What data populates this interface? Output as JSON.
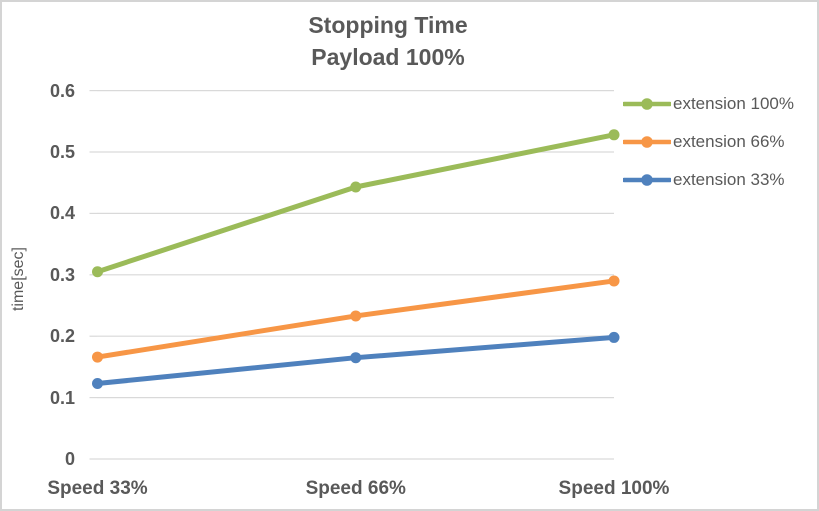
{
  "chart_data": {
    "type": "line",
    "title": "Stopping Time",
    "subtitle": "Payload 100%",
    "ylabel": "time[sec]",
    "categories": [
      "Speed 33%",
      "Speed 66%",
      "Speed 100%"
    ],
    "series": [
      {
        "name": "extension 100%",
        "color": "#9BBB59",
        "values": [
          0.305,
          0.443,
          0.528
        ]
      },
      {
        "name": "extension 66%",
        "color": "#F79646",
        "values": [
          0.166,
          0.233,
          0.29
        ]
      },
      {
        "name": "extension 33%",
        "color": "#4F81BD",
        "values": [
          0.123,
          0.165,
          0.198
        ]
      }
    ],
    "ylim": [
      0,
      0.6
    ],
    "ytick_step": 0.1,
    "yticks": [
      "0",
      "0.1",
      "0.2",
      "0.3",
      "0.4",
      "0.5",
      "0.6"
    ],
    "grid": true,
    "legend_position": "right",
    "marker": "circle",
    "colors": {
      "gridline": "#D9D9D9",
      "text": "#595959",
      "border": "#D4D4D4",
      "background": "#FFFFFF"
    }
  }
}
